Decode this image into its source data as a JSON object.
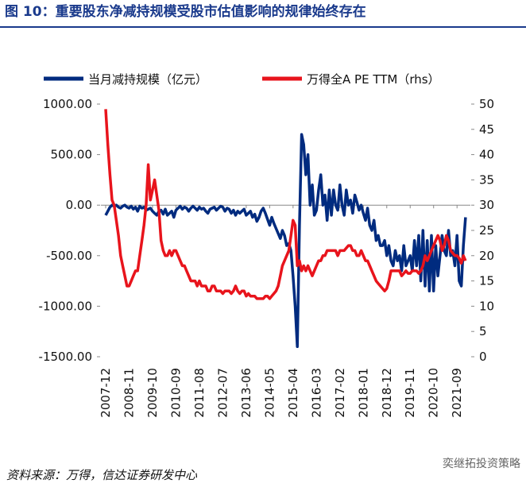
{
  "chart_data": {
    "type": "line",
    "title": "图 10：重要股东净减持规模受股市估值影响的规律始终存在",
    "source": "资料来源：万得，信达证券研发中心",
    "watermark": "奕继拓投资策略",
    "categories": [
      "2007-12",
      null,
      null,
      null,
      null,
      null,
      null,
      null,
      null,
      null,
      null,
      "2008-11",
      null,
      null,
      null,
      null,
      null,
      null,
      null,
      null,
      null,
      null,
      "2009-10",
      null,
      null,
      null,
      null,
      null,
      null,
      null,
      null,
      null,
      null,
      "2010-09",
      null,
      null,
      null,
      null,
      null,
      null,
      null,
      null,
      null,
      null,
      "2011-08",
      null,
      null,
      null,
      null,
      null,
      null,
      null,
      null,
      null,
      null,
      "2012-07",
      null,
      null,
      null,
      null,
      null,
      null,
      null,
      null,
      null,
      null,
      "2013-06",
      null,
      null,
      null,
      null,
      null,
      null,
      null,
      null,
      null,
      null,
      "2014-05",
      null,
      null,
      null,
      null,
      null,
      null,
      null,
      null,
      null,
      null,
      "2015-04",
      null,
      null,
      null,
      null,
      null,
      null,
      null,
      null,
      null,
      null,
      "2016-03",
      null,
      null,
      null,
      null,
      null,
      null,
      null,
      null,
      null,
      null,
      "2017-02",
      null,
      null,
      null,
      null,
      null,
      null,
      null,
      null,
      null,
      null,
      "2018-01",
      null,
      null,
      null,
      null,
      null,
      null,
      null,
      null,
      null,
      null,
      "2018-12",
      null,
      null,
      null,
      null,
      null,
      null,
      null,
      null,
      null,
      null,
      "2019-11",
      null,
      null,
      null,
      null,
      null,
      null,
      null,
      null,
      null,
      null,
      "2020-10",
      null,
      null,
      null,
      null,
      null,
      null,
      null,
      null,
      null,
      null,
      "2021-09",
      null,
      null,
      null,
      null
    ],
    "series": [
      {
        "name": "当月减持规模（亿元）",
        "color": "#002b7f",
        "axis": "y",
        "values": [
          -100,
          -60,
          -20,
          0,
          -10,
          0,
          -20,
          -30,
          -10,
          0,
          -20,
          -30,
          -10,
          -40,
          -20,
          -60,
          -10,
          -30,
          -20,
          -50,
          -40,
          -30,
          -60,
          -80,
          -100,
          -60,
          -50,
          -90,
          -40,
          -100,
          -80,
          -60,
          -120,
          -50,
          -30,
          -10,
          -40,
          -20,
          -30,
          -60,
          -30,
          -10,
          -30,
          -50,
          -20,
          -40,
          -30,
          -60,
          -80,
          -40,
          -30,
          -20,
          -50,
          -30,
          -10,
          -20,
          -60,
          -30,
          -40,
          -80,
          -50,
          -100,
          -60,
          -80,
          -60,
          -40,
          -100,
          -80,
          -60,
          -120,
          -90,
          -160,
          -120,
          -60,
          -30,
          -80,
          -140,
          -200,
          -120,
          -180,
          -230,
          -280,
          -330,
          -250,
          -300,
          -400,
          -380,
          -450,
          -700,
          -1000,
          -1400,
          -200,
          700,
          600,
          300,
          500,
          0,
          200,
          -100,
          -50,
          150,
          300,
          0,
          100,
          -150,
          150,
          -100,
          150,
          0,
          -50,
          200,
          0,
          -100,
          150,
          0,
          50,
          -80,
          100,
          30,
          -50,
          0,
          -80,
          -150,
          -30,
          -200,
          -250,
          -150,
          -350,
          -300,
          -400,
          -400,
          -350,
          -500,
          -400,
          -550,
          -600,
          -450,
          -550,
          -500,
          -650,
          -400,
          -600,
          -550,
          -500,
          -650,
          -350,
          -600,
          -300,
          -750,
          -250,
          -800,
          -350,
          -850,
          -300,
          -850,
          -400,
          -700,
          -500,
          -300,
          -450,
          -500,
          -250,
          -500,
          -450,
          -600,
          -300,
          -750,
          -800,
          -400,
          -120
        ]
      },
      {
        "name": "万得全A PE TTM（rhs）",
        "color": "#e8141c",
        "axis": "y2",
        "values": [
          49,
          42,
          36,
          31,
          30,
          27,
          24,
          20,
          18,
          16,
          14,
          14,
          15,
          16,
          17,
          17,
          20,
          23,
          26,
          30,
          38,
          31,
          33,
          35,
          32,
          29,
          23,
          21,
          20,
          20,
          21,
          20,
          21,
          21,
          20,
          19,
          18,
          18,
          17,
          16,
          15,
          15,
          15,
          14,
          15,
          14,
          14,
          14,
          13,
          13,
          14,
          14,
          13,
          13,
          13,
          12.5,
          13,
          13,
          13,
          12.5,
          13,
          14,
          13,
          12.5,
          13,
          13,
          12,
          12.5,
          12,
          12,
          12,
          11.5,
          11.5,
          11.5,
          11.5,
          12,
          12,
          11.5,
          12,
          12.5,
          13,
          14,
          16,
          18,
          19,
          20,
          21,
          24,
          27,
          26,
          18,
          19,
          17,
          18,
          17,
          18,
          17,
          16,
          17,
          18,
          19,
          19,
          20,
          20,
          21,
          21,
          21,
          21,
          21,
          20,
          21,
          21,
          21,
          21.5,
          22,
          22,
          21,
          21,
          20,
          20,
          21,
          20,
          19,
          19,
          18,
          17,
          16,
          15,
          14.5,
          14,
          13.5,
          13,
          13.5,
          15,
          17,
          17,
          17,
          17,
          17,
          16,
          16.5,
          17,
          16.5,
          16.5,
          17,
          17,
          17,
          16.5,
          17,
          18,
          20,
          19,
          20,
          21,
          22,
          23,
          24,
          23,
          21,
          22,
          24,
          23,
          21,
          20.5,
          20,
          20,
          19.5,
          18.5,
          20,
          19
        ]
      }
    ],
    "ylim": [
      -1500,
      1000
    ],
    "yticks": [
      {
        "value": -1500,
        "label": "-1500.00"
      },
      {
        "value": -1000,
        "label": "-1000.00"
      },
      {
        "value": -500,
        "label": "-500.00"
      },
      {
        "value": 0,
        "label": "0.00"
      },
      {
        "value": 500,
        "label": "500.00"
      },
      {
        "value": 1000,
        "label": "1000.00"
      }
    ],
    "y2lim": [
      0,
      50
    ],
    "y2ticks": [
      0,
      5,
      10,
      15,
      20,
      25,
      30,
      35,
      40,
      45,
      50
    ],
    "legend": "top"
  }
}
